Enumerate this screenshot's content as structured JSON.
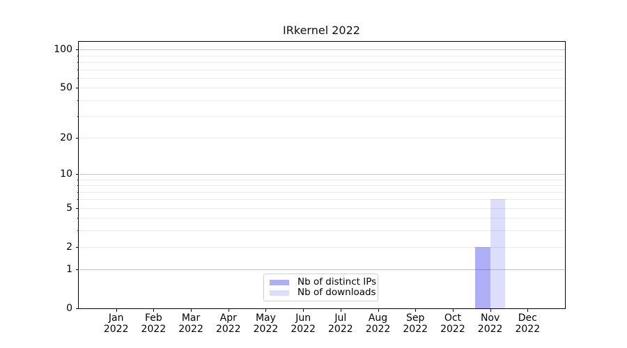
{
  "figure": {
    "title": "IRkernel 2022",
    "background": "#ffffff"
  },
  "chart_data": {
    "type": "bar",
    "title": "IRkernel 2022",
    "categories": [
      "Jan",
      "Feb",
      "Mar",
      "Apr",
      "May",
      "Jun",
      "Jul",
      "Aug",
      "Sep",
      "Oct",
      "Nov",
      "Dec"
    ],
    "year": "2022",
    "series": [
      {
        "name": "Nb of distinct IPs",
        "color": "rgba(25,25,235,0.35)",
        "values": [
          0,
          0,
          0,
          0,
          0,
          0,
          0,
          0,
          0,
          0,
          2,
          0
        ]
      },
      {
        "name": "Nb of downloads",
        "color": "rgba(25,25,235,0.15)",
        "values": [
          0,
          0,
          0,
          0,
          0,
          0,
          0,
          0,
          0,
          0,
          6,
          0
        ]
      }
    ],
    "y_axis": {
      "scale": "log1p",
      "ylim": [
        0,
        100
      ],
      "ticks": [
        0,
        1,
        2,
        5,
        10,
        20,
        50,
        100
      ],
      "major_gridlines": [
        1,
        10,
        100
      ],
      "minor_gridlines": [
        2,
        3,
        4,
        5,
        6,
        7,
        8,
        9,
        20,
        30,
        40,
        50,
        60,
        70,
        80,
        90
      ],
      "minor_tick_marks": [
        3,
        4,
        6,
        7,
        8,
        9,
        30,
        40,
        60,
        70,
        80,
        90
      ]
    },
    "legend": {
      "entries": [
        "Nb of distinct IPs",
        "Nb of downloads"
      ],
      "position": "lower center"
    },
    "grid": true
  },
  "colors": {
    "major_grid": "#c3c3c3",
    "minor_grid": "#ebebeb",
    "axis": "#000000"
  }
}
